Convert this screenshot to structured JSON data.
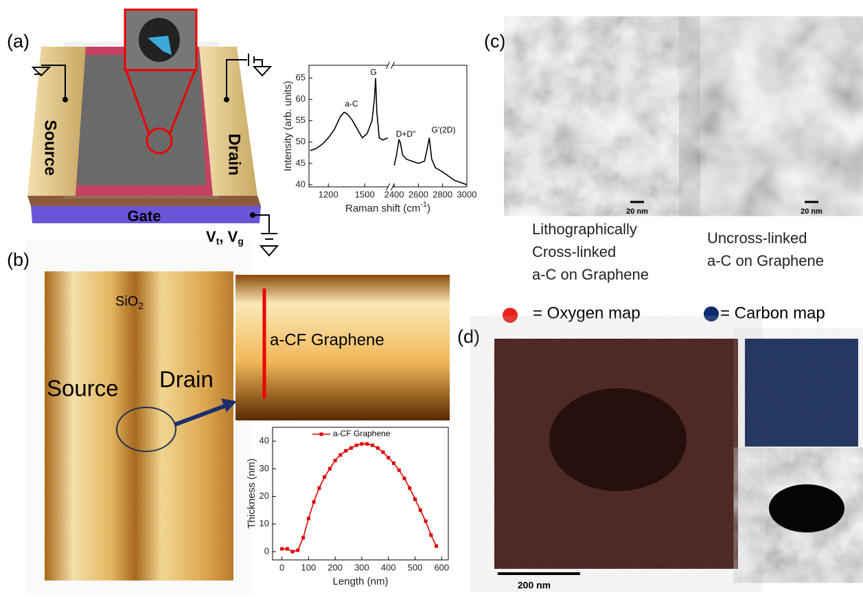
{
  "panel_labels": [
    "(a)",
    "(b)",
    "(c)",
    "(d)"
  ],
  "device": {
    "source": "Source",
    "drain": "Drain",
    "gate": "Gate",
    "voltage": [
      "V",
      "t",
      ", V",
      "g"
    ]
  },
  "afm": {
    "oxide": [
      "SiO",
      "2"
    ],
    "source": "Source",
    "drain": "Drain",
    "film": "a-CF Graphene"
  },
  "tem": [
    {
      "scale": "20 nm",
      "caption": [
        "Lithographically",
        "Cross-linked",
        "a-C on Graphene"
      ]
    },
    {
      "scale": "20 nm",
      "caption": [
        "Uncross-linked",
        "a-C on Graphene"
      ]
    }
  ],
  "maps": {
    "oxygen": "= Oxygen map",
    "carbon": "= Carbon map",
    "scale": "200 nm"
  },
  "chart_data": [
    {
      "type": "line",
      "x_label": [
        "Raman shift (cm",
        "-1",
        ")"
      ],
      "y_label": "Intensity (arb. units)",
      "annotations": [
        "a-C",
        "G",
        "D+D\"",
        "G'(2D)"
      ],
      "x": [
        1050,
        1100,
        1150,
        1200,
        1250,
        1300,
        1330,
        1360,
        1400,
        1440,
        1480,
        1520,
        1560,
        1580,
        1590,
        1600,
        1620,
        1650,
        1690,
        2000,
        2400,
        2420,
        2440,
        2450,
        2470,
        2500,
        2550,
        2600,
        2650,
        2670,
        2690,
        2710,
        2740,
        2800,
        2850,
        2900,
        2950,
        3000
      ],
      "series": [
        {
          "color": "#000000",
          "values": [
            48,
            48.5,
            49.5,
            51,
            53,
            56,
            57,
            56.5,
            55,
            53,
            51,
            52,
            55,
            60,
            65,
            57,
            51,
            50.5,
            51,
            null,
            44.5,
            47,
            50.5,
            50,
            47,
            46,
            45.5,
            45,
            45.5,
            48,
            51,
            46,
            44,
            43,
            42,
            41,
            40.5,
            40
          ]
        }
      ],
      "xlim": [
        1040,
        3000
      ],
      "x_break": [
        1700,
        2380
      ],
      "ylim": [
        39.5,
        68
      ],
      "xticks": [
        1200,
        1500,
        2400,
        2600,
        2800,
        3000
      ],
      "yticks": [
        40,
        45,
        50,
        55,
        60,
        65
      ]
    },
    {
      "type": "line",
      "x_label": "Length (nm)",
      "y_label": "Thickness (nm)",
      "legend": "top",
      "x": [
        0,
        20,
        40,
        60,
        80,
        100,
        120,
        140,
        160,
        180,
        200,
        220,
        240,
        260,
        280,
        300,
        320,
        340,
        360,
        380,
        400,
        420,
        440,
        460,
        480,
        500,
        520,
        540,
        560,
        580
      ],
      "series": [
        {
          "name": "a-CF Graphene",
          "color": "#e00000",
          "values": [
            1,
            1,
            0,
            0.5,
            5,
            12,
            18,
            23,
            27,
            30,
            33,
            35,
            36.5,
            37.5,
            38.5,
            39,
            39,
            38.5,
            37.5,
            36,
            34,
            32,
            29.5,
            26.5,
            23,
            19,
            15,
            11,
            6,
            2
          ]
        }
      ],
      "xlim": [
        -35,
        625
      ],
      "ylim": [
        -3,
        45
      ],
      "xticks": [
        0,
        100,
        200,
        300,
        400,
        500,
        600
      ],
      "yticks": [
        0,
        10,
        20,
        30,
        40
      ]
    }
  ]
}
